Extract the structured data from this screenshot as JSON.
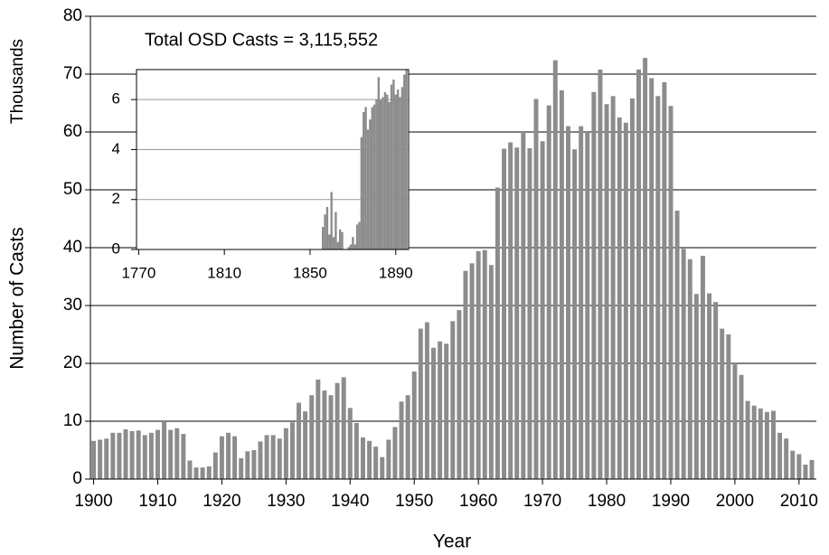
{
  "chart_data": [
    {
      "type": "bar",
      "title": "Total OSD Casts =  3,115,552",
      "xlabel": "Year",
      "ylabel": "Number of Casts",
      "y_unit": "Thousands",
      "color": "#8c8c8c",
      "grid": true,
      "x": [
        1900,
        1901,
        1902,
        1903,
        1904,
        1905,
        1906,
        1907,
        1908,
        1909,
        1910,
        1911,
        1912,
        1913,
        1914,
        1915,
        1916,
        1917,
        1918,
        1919,
        1920,
        1921,
        1922,
        1923,
        1924,
        1925,
        1926,
        1927,
        1928,
        1929,
        1930,
        1931,
        1932,
        1933,
        1934,
        1935,
        1936,
        1937,
        1938,
        1939,
        1940,
        1941,
        1942,
        1943,
        1944,
        1945,
        1946,
        1947,
        1948,
        1949,
        1950,
        1951,
        1952,
        1953,
        1954,
        1955,
        1956,
        1957,
        1958,
        1959,
        1960,
        1961,
        1962,
        1963,
        1964,
        1965,
        1966,
        1967,
        1968,
        1969,
        1970,
        1971,
        1972,
        1973,
        1974,
        1975,
        1976,
        1977,
        1978,
        1979,
        1980,
        1981,
        1982,
        1983,
        1984,
        1985,
        1986,
        1987,
        1988,
        1989,
        1990,
        1991,
        1992,
        1993,
        1994,
        1995,
        1996,
        1997,
        1998,
        1999,
        2000,
        2001,
        2002,
        2003,
        2004,
        2005,
        2006,
        2007,
        2008,
        2009,
        2010,
        2011,
        2012
      ],
      "values": [
        6.6,
        6.8,
        7.0,
        8.0,
        8.0,
        8.6,
        8.3,
        8.4,
        7.6,
        8.0,
        8.5,
        10.0,
        8.5,
        8.8,
        7.8,
        3.2,
        2.0,
        2.0,
        2.2,
        4.6,
        7.4,
        8.0,
        7.4,
        3.6,
        4.8,
        5.0,
        6.5,
        7.6,
        7.6,
        7.0,
        8.8,
        9.8,
        13.2,
        11.7,
        14.5,
        17.2,
        15.3,
        14.5,
        16.6,
        17.6,
        12.3,
        9.7,
        7.2,
        6.6,
        5.6,
        3.8,
        6.8,
        9.0,
        13.4,
        14.5,
        18.6,
        26.0,
        27.1,
        22.7,
        23.8,
        23.4,
        27.3,
        29.2,
        36.0,
        37.3,
        39.4,
        39.6,
        37.0,
        50.4,
        57.1,
        58.2,
        57.3,
        60.0,
        57.2,
        65.7,
        58.4,
        64.6,
        72.4,
        67.2,
        61.0,
        57.0,
        61.0,
        60.0,
        66.9,
        70.8,
        64.8,
        66.2,
        62.5,
        61.6,
        65.8,
        70.8,
        72.8,
        69.3,
        66.2,
        68.6,
        64.5,
        46.4,
        39.8,
        38.0,
        32.0,
        38.6,
        32.1,
        30.6,
        26.0,
        25.0,
        20.0,
        18.0,
        13.5,
        12.7,
        12.2,
        11.6,
        11.8,
        8.0,
        7.0,
        4.9,
        4.3,
        2.5,
        3.3
      ],
      "xlim": [
        1899.5,
        2012.7
      ],
      "xticks": [
        1900,
        1910,
        1920,
        1930,
        1940,
        1950,
        1960,
        1970,
        1980,
        1990,
        2000,
        2010
      ],
      "ylim": [
        0,
        80
      ],
      "yticks": [
        0,
        10,
        20,
        30,
        40,
        50,
        60,
        70,
        80
      ]
    },
    {
      "type": "bar",
      "color": "#8c8c8c",
      "grid": true,
      "x": [
        1856,
        1857,
        1858,
        1859,
        1860,
        1861,
        1862,
        1863,
        1864,
        1865,
        1866,
        1867,
        1868,
        1869,
        1870,
        1871,
        1872,
        1873,
        1874,
        1875,
        1876,
        1877,
        1878,
        1879,
        1880,
        1881,
        1882,
        1883,
        1884,
        1885,
        1886,
        1887,
        1888,
        1889,
        1890,
        1891,
        1892,
        1893,
        1894,
        1895
      ],
      "values": [
        0.9,
        1.4,
        1.7,
        0.6,
        2.3,
        0.5,
        1.5,
        0.3,
        0.8,
        0.7,
        0,
        0,
        0.1,
        0.2,
        0.5,
        0.2,
        1.0,
        1.1,
        4.5,
        5.5,
        5.7,
        4.8,
        5.2,
        5.7,
        5.8,
        6.0,
        6.9,
        6.0,
        6.1,
        6.3,
        6.2,
        5.9,
        6.6,
        6.8,
        6.2,
        6.4,
        6.1,
        6.5,
        7.0,
        7.2
      ],
      "xlim": [
        1769,
        1896
      ],
      "xticks": [
        1770,
        1810,
        1850,
        1890
      ],
      "ylim": [
        0,
        7.2
      ],
      "yticks": [
        0,
        2,
        4,
        6
      ]
    }
  ]
}
